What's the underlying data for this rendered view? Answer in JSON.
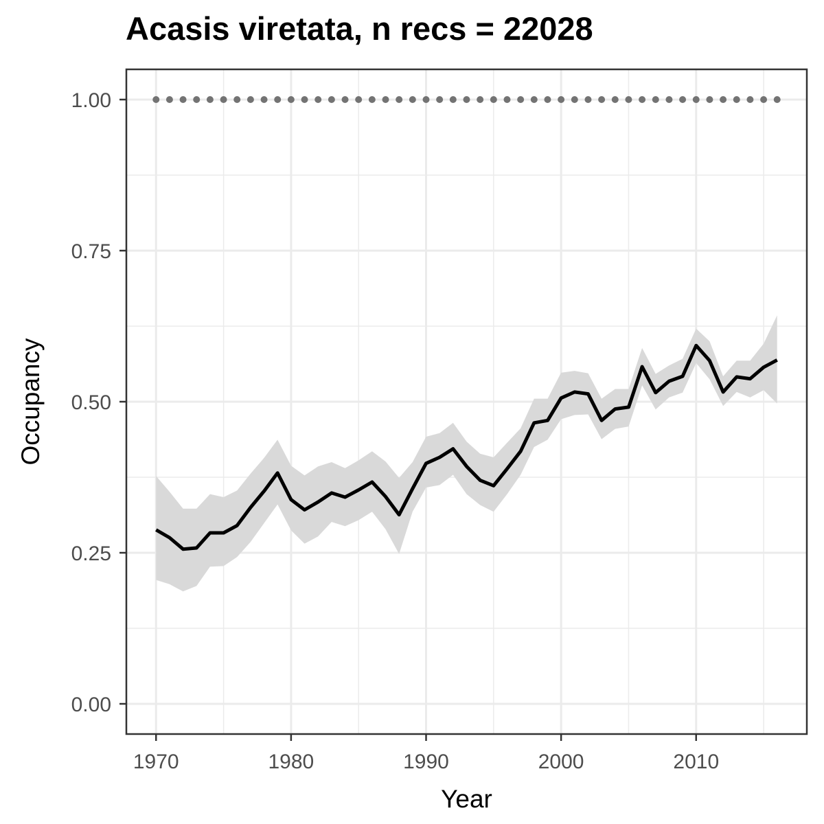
{
  "chart_data": {
    "type": "line",
    "title": "Acasis viretata, n recs = 22028",
    "xlabel": "Year",
    "ylabel": "Occupancy",
    "xlim": [
      1967.8,
      2018.2
    ],
    "ylim": [
      -0.05,
      1.05
    ],
    "x_ticks": [
      1970,
      1980,
      1990,
      2000,
      2010
    ],
    "x_tick_labels": [
      "1970",
      "1980",
      "1990",
      "2000",
      "2010"
    ],
    "x_minor_ticks": [
      1975,
      1985,
      1995,
      2005,
      2015
    ],
    "y_ticks": [
      0,
      0.25,
      0.5,
      0.75,
      1.0
    ],
    "y_tick_labels": [
      "0.00",
      "0.25",
      "0.50",
      "0.75",
      "1.00"
    ],
    "y_minor_ticks": [
      0.125,
      0.375,
      0.625,
      0.875
    ],
    "grid": true,
    "colors": {
      "mean_line": "#000000",
      "ribbon": "#d9d9d9",
      "reference_points": "#737373",
      "grid": "#ebebeb",
      "panel_border": "#333333"
    },
    "series": [
      {
        "role": "mean",
        "x": [
          1970,
          1971,
          1972,
          1973,
          1974,
          1975,
          1976,
          1977,
          1978,
          1979,
          1980,
          1981,
          1982,
          1983,
          1984,
          1985,
          1986,
          1987,
          1988,
          1989,
          1990,
          1991,
          1992,
          1993,
          1994,
          1995,
          1996,
          1997,
          1998,
          1999,
          2000,
          2001,
          2002,
          2003,
          2004,
          2005,
          2006,
          2007,
          2008,
          2009,
          2010,
          2011,
          2012,
          2013,
          2014,
          2015,
          2016
        ],
        "y": [
          0.288,
          0.275,
          0.256,
          0.258,
          0.283,
          0.283,
          0.295,
          0.325,
          0.352,
          0.382,
          0.338,
          0.321,
          0.334,
          0.349,
          0.342,
          0.354,
          0.367,
          0.343,
          0.313,
          0.356,
          0.398,
          0.408,
          0.422,
          0.393,
          0.37,
          0.361,
          0.389,
          0.418,
          0.465,
          0.469,
          0.506,
          0.516,
          0.513,
          0.469,
          0.488,
          0.491,
          0.558,
          0.515,
          0.534,
          0.542,
          0.593,
          0.568,
          0.516,
          0.541,
          0.538,
          0.557,
          0.569
        ]
      },
      {
        "role": "lower_ci",
        "x": [
          1970,
          1971,
          1972,
          1973,
          1974,
          1975,
          1976,
          1977,
          1978,
          1979,
          1980,
          1981,
          1982,
          1983,
          1984,
          1985,
          1986,
          1987,
          1988,
          1989,
          1990,
          1991,
          1992,
          1993,
          1994,
          1995,
          1996,
          1997,
          1998,
          1999,
          2000,
          2001,
          2002,
          2003,
          2004,
          2005,
          2006,
          2007,
          2008,
          2009,
          2010,
          2011,
          2012,
          2013,
          2014,
          2015,
          2016
        ],
        "y": [
          0.205,
          0.198,
          0.186,
          0.195,
          0.227,
          0.228,
          0.243,
          0.268,
          0.299,
          0.33,
          0.287,
          0.265,
          0.277,
          0.301,
          0.294,
          0.304,
          0.318,
          0.289,
          0.248,
          0.318,
          0.358,
          0.362,
          0.379,
          0.347,
          0.329,
          0.318,
          0.347,
          0.379,
          0.425,
          0.437,
          0.471,
          0.478,
          0.479,
          0.438,
          0.455,
          0.459,
          0.527,
          0.487,
          0.507,
          0.515,
          0.564,
          0.537,
          0.493,
          0.516,
          0.507,
          0.519,
          0.497
        ]
      },
      {
        "role": "upper_ci",
        "x": [
          1970,
          1971,
          1972,
          1973,
          1974,
          1975,
          1976,
          1977,
          1978,
          1979,
          1980,
          1981,
          1982,
          1983,
          1984,
          1985,
          1986,
          1987,
          1988,
          1989,
          1990,
          1991,
          1992,
          1993,
          1994,
          1995,
          1996,
          1997,
          1998,
          1999,
          2000,
          2001,
          2002,
          2003,
          2004,
          2005,
          2006,
          2007,
          2008,
          2009,
          2010,
          2011,
          2012,
          2013,
          2014,
          2015,
          2016
        ],
        "y": [
          0.377,
          0.351,
          0.323,
          0.323,
          0.347,
          0.342,
          0.353,
          0.381,
          0.407,
          0.437,
          0.394,
          0.378,
          0.393,
          0.4,
          0.39,
          0.403,
          0.418,
          0.401,
          0.374,
          0.4,
          0.442,
          0.448,
          0.465,
          0.434,
          0.414,
          0.408,
          0.432,
          0.456,
          0.505,
          0.505,
          0.548,
          0.551,
          0.547,
          0.505,
          0.521,
          0.521,
          0.589,
          0.546,
          0.56,
          0.571,
          0.621,
          0.6,
          0.542,
          0.568,
          0.568,
          0.596,
          0.643
        ]
      },
      {
        "role": "reference_points",
        "x": [
          1970,
          1971,
          1972,
          1973,
          1974,
          1975,
          1976,
          1977,
          1978,
          1979,
          1980,
          1981,
          1982,
          1983,
          1984,
          1985,
          1986,
          1987,
          1988,
          1989,
          1990,
          1991,
          1992,
          1993,
          1994,
          1995,
          1996,
          1997,
          1998,
          1999,
          2000,
          2001,
          2002,
          2003,
          2004,
          2005,
          2006,
          2007,
          2008,
          2009,
          2010,
          2011,
          2012,
          2013,
          2014,
          2015,
          2016
        ],
        "y": [
          1,
          1,
          1,
          1,
          1,
          1,
          1,
          1,
          1,
          1,
          1,
          1,
          1,
          1,
          1,
          1,
          1,
          1,
          1,
          1,
          1,
          1,
          1,
          1,
          1,
          1,
          1,
          1,
          1,
          1,
          1,
          1,
          1,
          1,
          1,
          1,
          1,
          1,
          1,
          1,
          1,
          1,
          1,
          1,
          1,
          1,
          1
        ]
      }
    ]
  }
}
